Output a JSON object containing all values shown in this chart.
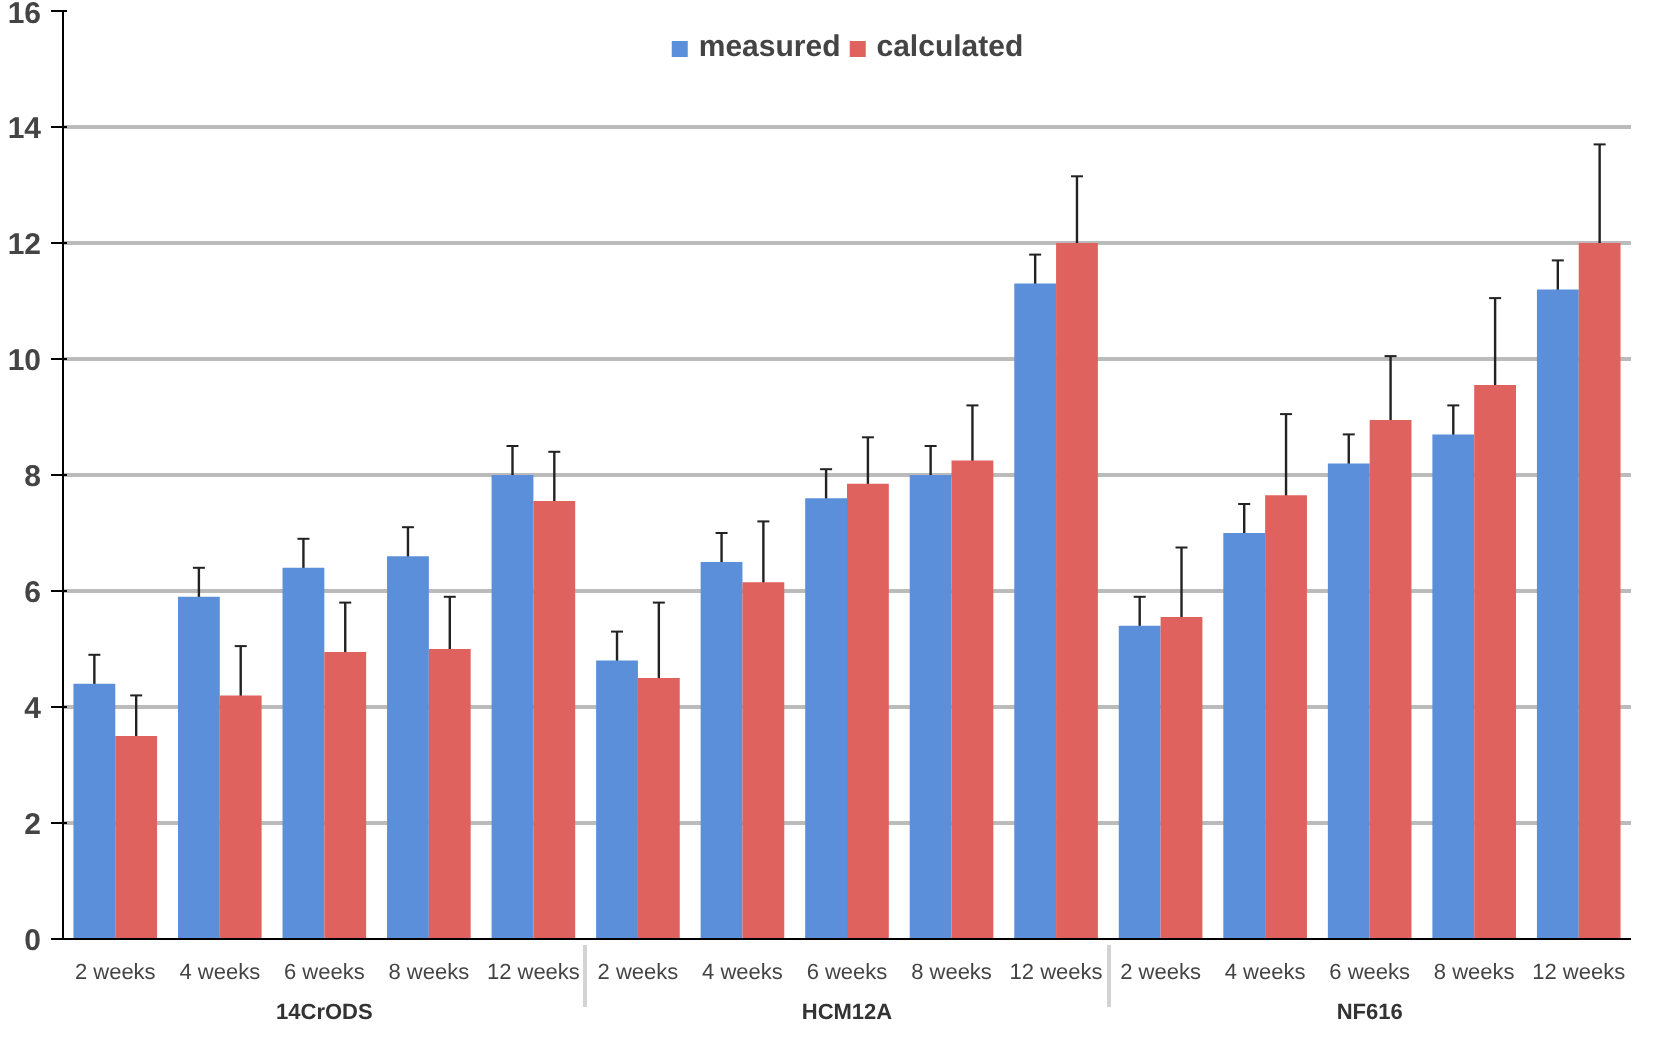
{
  "chart_data": {
    "type": "bar",
    "categories": [
      "2 weeks",
      "4 weeks",
      "6 weeks",
      "8 weeks",
      "12 weeks",
      "2 weeks",
      "4 weeks",
      "6 weeks",
      "8 weeks",
      "12 weeks",
      "2 weeks",
      "4 weeks",
      "6 weeks",
      "8 weeks",
      "12 weeks"
    ],
    "series": [
      {
        "name": "measured",
        "color": "#5b8fd9",
        "values": [
          4.4,
          5.9,
          6.4,
          6.6,
          8.0,
          4.8,
          6.5,
          7.6,
          8.0,
          11.3,
          5.4,
          7.0,
          8.2,
          8.7,
          11.2
        ],
        "errors": [
          0.5,
          0.5,
          0.5,
          0.5,
          0.5,
          0.5,
          0.5,
          0.5,
          0.5,
          0.5,
          0.5,
          0.5,
          0.5,
          0.5,
          0.5
        ]
      },
      {
        "name": "calculated",
        "color": "#e0625e",
        "values": [
          3.5,
          4.2,
          4.95,
          5.0,
          7.55,
          4.5,
          6.15,
          7.85,
          8.25,
          12.0,
          5.55,
          7.65,
          8.95,
          9.55,
          12.0
        ],
        "errors": [
          0.7,
          0.85,
          0.85,
          0.9,
          0.85,
          1.3,
          1.05,
          0.8,
          0.95,
          1.15,
          1.2,
          1.4,
          1.1,
          1.5,
          1.7
        ]
      }
    ],
    "annotations": [
      "14CrODS",
      "HCM12A",
      "NF616"
    ],
    "ylim": [
      0,
      16
    ],
    "yticks": [
      0,
      2,
      4,
      6,
      8,
      10,
      12,
      14,
      16
    ],
    "grid": "y",
    "legend": "top"
  }
}
